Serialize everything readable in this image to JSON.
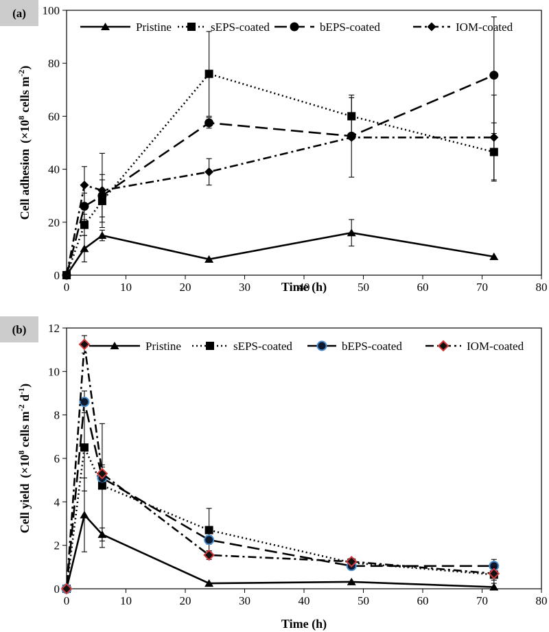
{
  "chart_data": [
    {
      "type": "line",
      "panel_label": "(a)",
      "xlabel": "Time (h)",
      "ylabel_main": "Cell adhesion",
      "ylabel_unit_pre": "(×10",
      "ylabel_unit_sup": "8",
      "ylabel_unit_mid": " cells m",
      "ylabel_unit_sup2": "-2",
      "ylabel_unit_post": ")",
      "xlim": [
        0,
        80
      ],
      "ylim": [
        0,
        100
      ],
      "xticks": [
        "0",
        "10",
        "20",
        "30",
        "40",
        "50",
        "60",
        "70",
        "80"
      ],
      "yticks": [
        "0",
        "20",
        "40",
        "60",
        "80",
        "100"
      ],
      "x": [
        0,
        3,
        6,
        24,
        48,
        72
      ],
      "series": [
        {
          "name": "Pristine",
          "values": [
            0,
            10,
            15,
            6,
            16,
            7
          ],
          "errors": [
            0,
            5,
            2,
            0,
            5,
            0
          ],
          "marker": "triangle",
          "dash": "solid"
        },
        {
          "name": "sEPS-coated",
          "values": [
            0,
            19,
            28,
            76,
            60,
            46.5
          ],
          "errors": [
            0,
            4,
            8,
            16,
            8,
            11
          ],
          "marker": "square",
          "dash": "dotted"
        },
        {
          "name": "bEPS-coated",
          "values": [
            0,
            26,
            30,
            57.5,
            52.5,
            75.5
          ],
          "errors": [
            0,
            5,
            8,
            2,
            0,
            22
          ],
          "marker": "circle",
          "dash": "longdash"
        },
        {
          "name": "IOM-coated",
          "values": [
            0,
            34,
            32,
            39,
            52,
            52
          ],
          "errors": [
            0,
            7,
            14,
            5,
            15,
            16
          ],
          "marker": "diamond",
          "dash": "dashdot"
        }
      ]
    },
    {
      "type": "line",
      "panel_label": "(b)",
      "xlabel": "Time (h)",
      "ylabel_main": "Cell yield",
      "ylabel_unit_pre": "(×10",
      "ylabel_unit_sup": "8",
      "ylabel_unit_mid": " cells m",
      "ylabel_unit_sup2": "-2",
      "ylabel_unit_post": " d",
      "ylabel_unit_sup3": "-1",
      "ylabel_unit_end": ")",
      "xlim": [
        0,
        80
      ],
      "ylim": [
        0,
        12
      ],
      "xticks": [
        "0",
        "10",
        "20",
        "30",
        "40",
        "50",
        "60",
        "70",
        "80"
      ],
      "yticks": [
        "0",
        "2",
        "4",
        "6",
        "8",
        "10",
        "12"
      ],
      "x": [
        0,
        3,
        6,
        24,
        48,
        72
      ],
      "series": [
        {
          "name": "Pristine",
          "values": [
            0,
            3.4,
            2.5,
            0.25,
            0.32,
            0.08
          ],
          "errors": [
            0,
            1.7,
            0.3,
            0,
            0,
            0
          ],
          "marker": "triangle",
          "dash": "solid"
        },
        {
          "name": "sEPS-coated",
          "values": [
            0,
            6.5,
            4.75,
            2.7,
            1.2,
            0.65
          ],
          "errors": [
            0,
            2.0,
            2.85,
            1.0,
            0.2,
            0.4
          ],
          "marker": "square",
          "dash": "dotted"
        },
        {
          "name": "bEPS-coated",
          "values": [
            0,
            8.6,
            5.1,
            2.25,
            1.05,
            1.05
          ],
          "errors": [
            0,
            0.5,
            0.5,
            0.2,
            0,
            0.3
          ],
          "marker": "circle-blue",
          "dash": "longdash"
        },
        {
          "name": "IOM-coated",
          "values": [
            0,
            11.25,
            5.3,
            1.55,
            1.25,
            0.7
          ],
          "errors": [
            0,
            0.4,
            0.4,
            0.2,
            0,
            0.3
          ],
          "marker": "diamond-red",
          "dash": "dashdot"
        }
      ]
    }
  ]
}
